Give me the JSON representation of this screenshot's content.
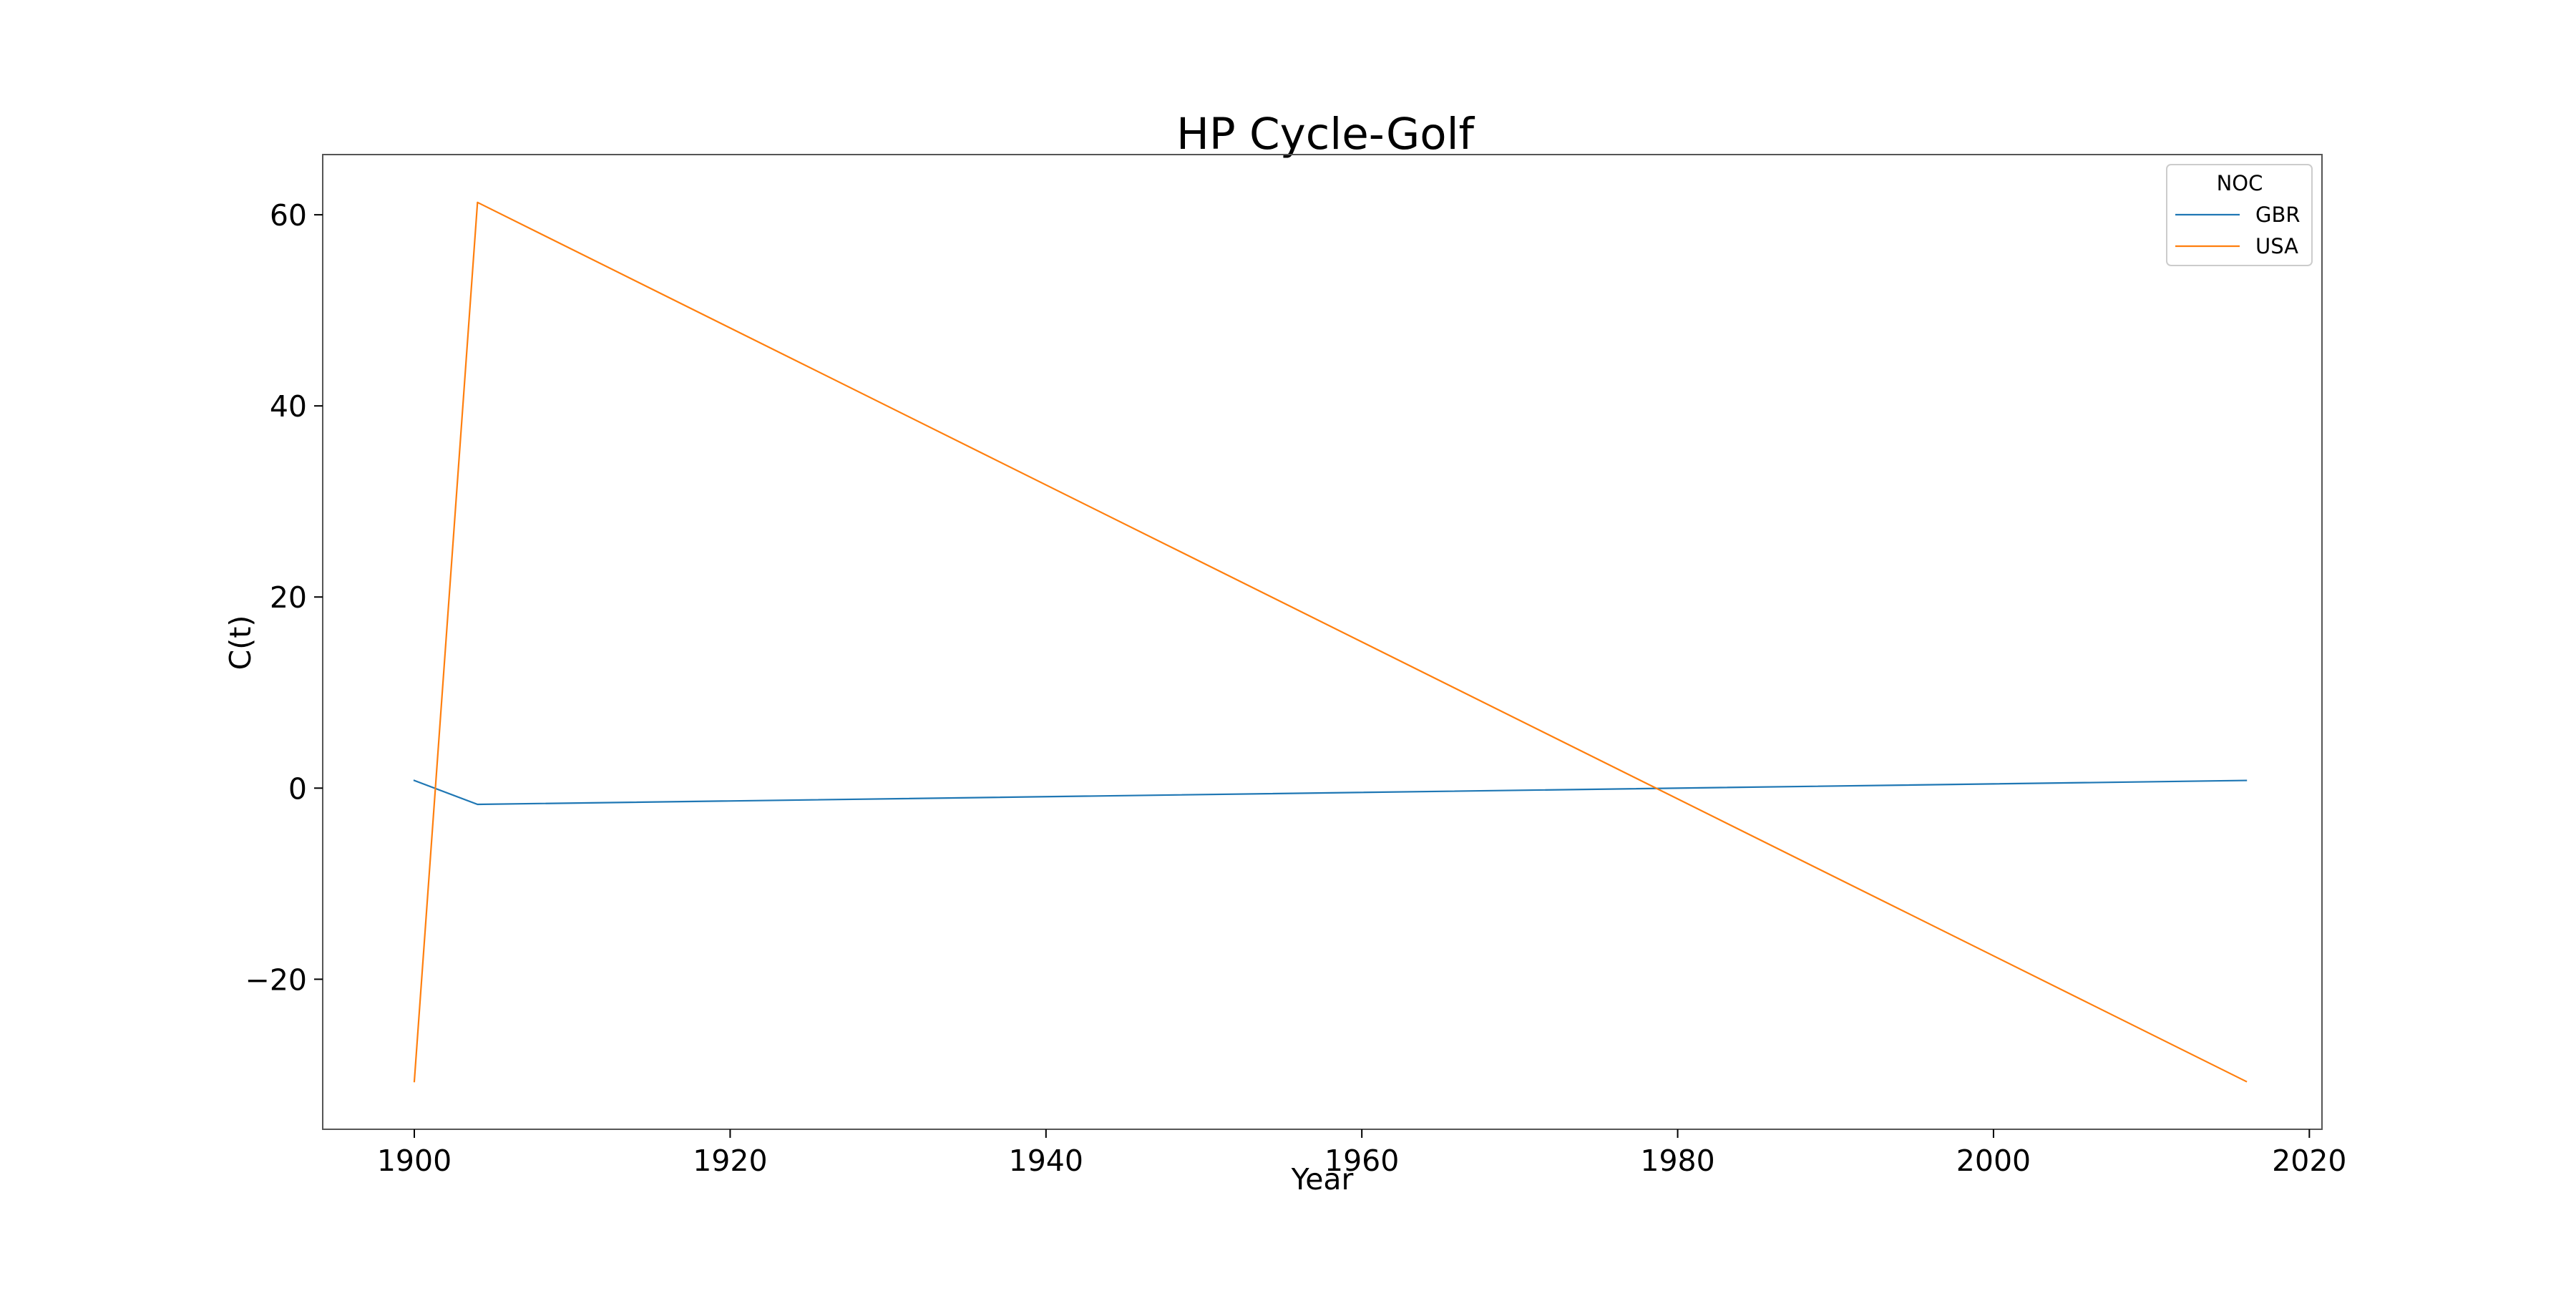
{
  "chart_data": {
    "type": "line",
    "title": "HP Cycle-Golf",
    "xlabel": "Year",
    "ylabel": "C(t)",
    "xlim": [
      1894.2,
      2020.8
    ],
    "ylim": [
      -35.7,
      66.3
    ],
    "x_ticks": [
      1900,
      1920,
      1940,
      1960,
      1980,
      2000,
      2020
    ],
    "x_tick_labels": [
      "1900",
      "1920",
      "1940",
      "1960",
      "1980",
      "2000",
      "2020"
    ],
    "y_ticks": [
      -20,
      0,
      20,
      40,
      60
    ],
    "y_tick_labels": [
      "−20",
      "0",
      "20",
      "40",
      "60"
    ],
    "grid": false,
    "legend": {
      "title": "NOC",
      "placement": "top-right"
    },
    "series": [
      {
        "name": "GBR",
        "color": "#1f77b4",
        "x": [
          1900,
          1904,
          2016
        ],
        "y": [
          0.8,
          -1.7,
          0.8
        ]
      },
      {
        "name": "USA",
        "color": "#ff7f0e",
        "x": [
          1900,
          1904,
          2016
        ],
        "y": [
          -30.7,
          61.3,
          -30.7
        ]
      }
    ]
  }
}
